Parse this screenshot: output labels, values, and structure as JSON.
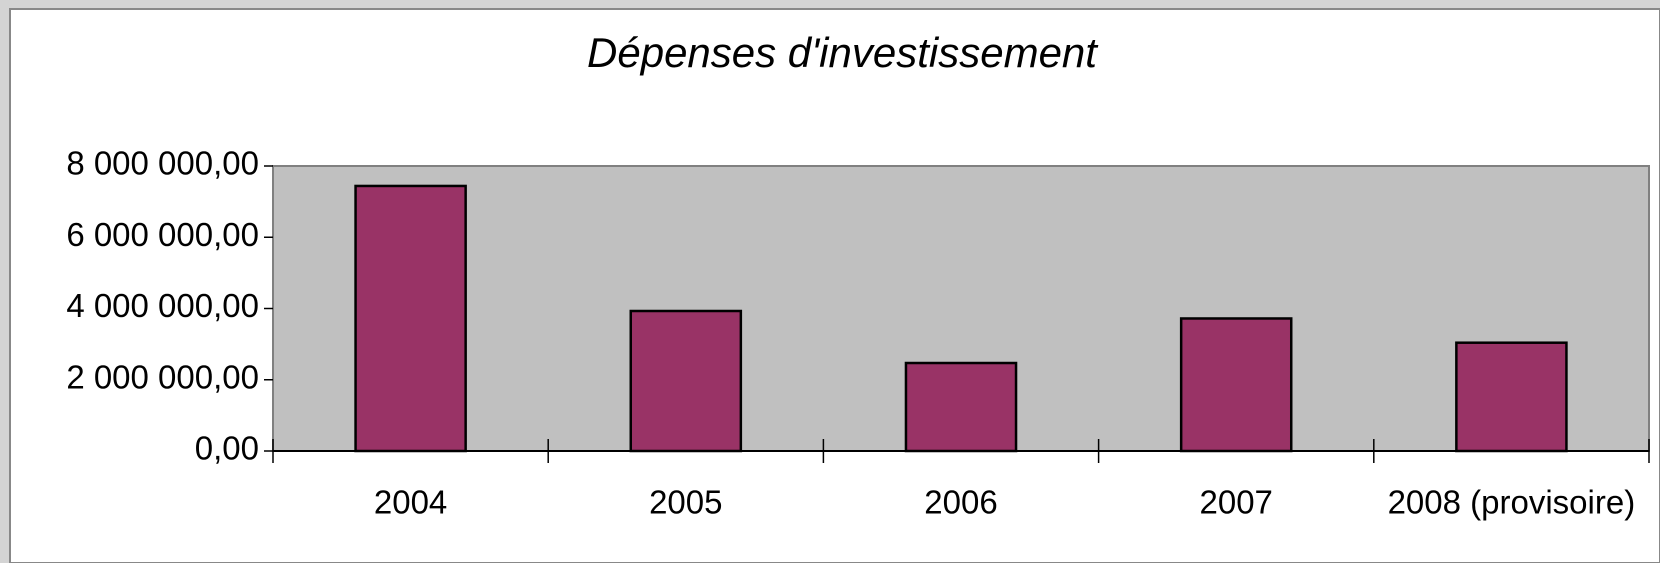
{
  "chart_data": {
    "type": "bar",
    "title": "Dépenses d'investissement",
    "categories": [
      "2004",
      "2005",
      "2006",
      "2007",
      "2008 (provisoire)"
    ],
    "values": [
      7440000,
      3930000,
      2470000,
      3720000,
      3040000
    ],
    "color": "#993366",
    "ylim": [
      0,
      8000000
    ],
    "yticks": [
      {
        "value": 0,
        "label": "0,00"
      },
      {
        "value": 2000000,
        "label": "2 000 000,00"
      },
      {
        "value": 4000000,
        "label": "4 000 000,00"
      },
      {
        "value": 6000000,
        "label": "6 000 000,00"
      },
      {
        "value": 8000000,
        "label": "8 000 000,00"
      }
    ],
    "grid": false
  }
}
